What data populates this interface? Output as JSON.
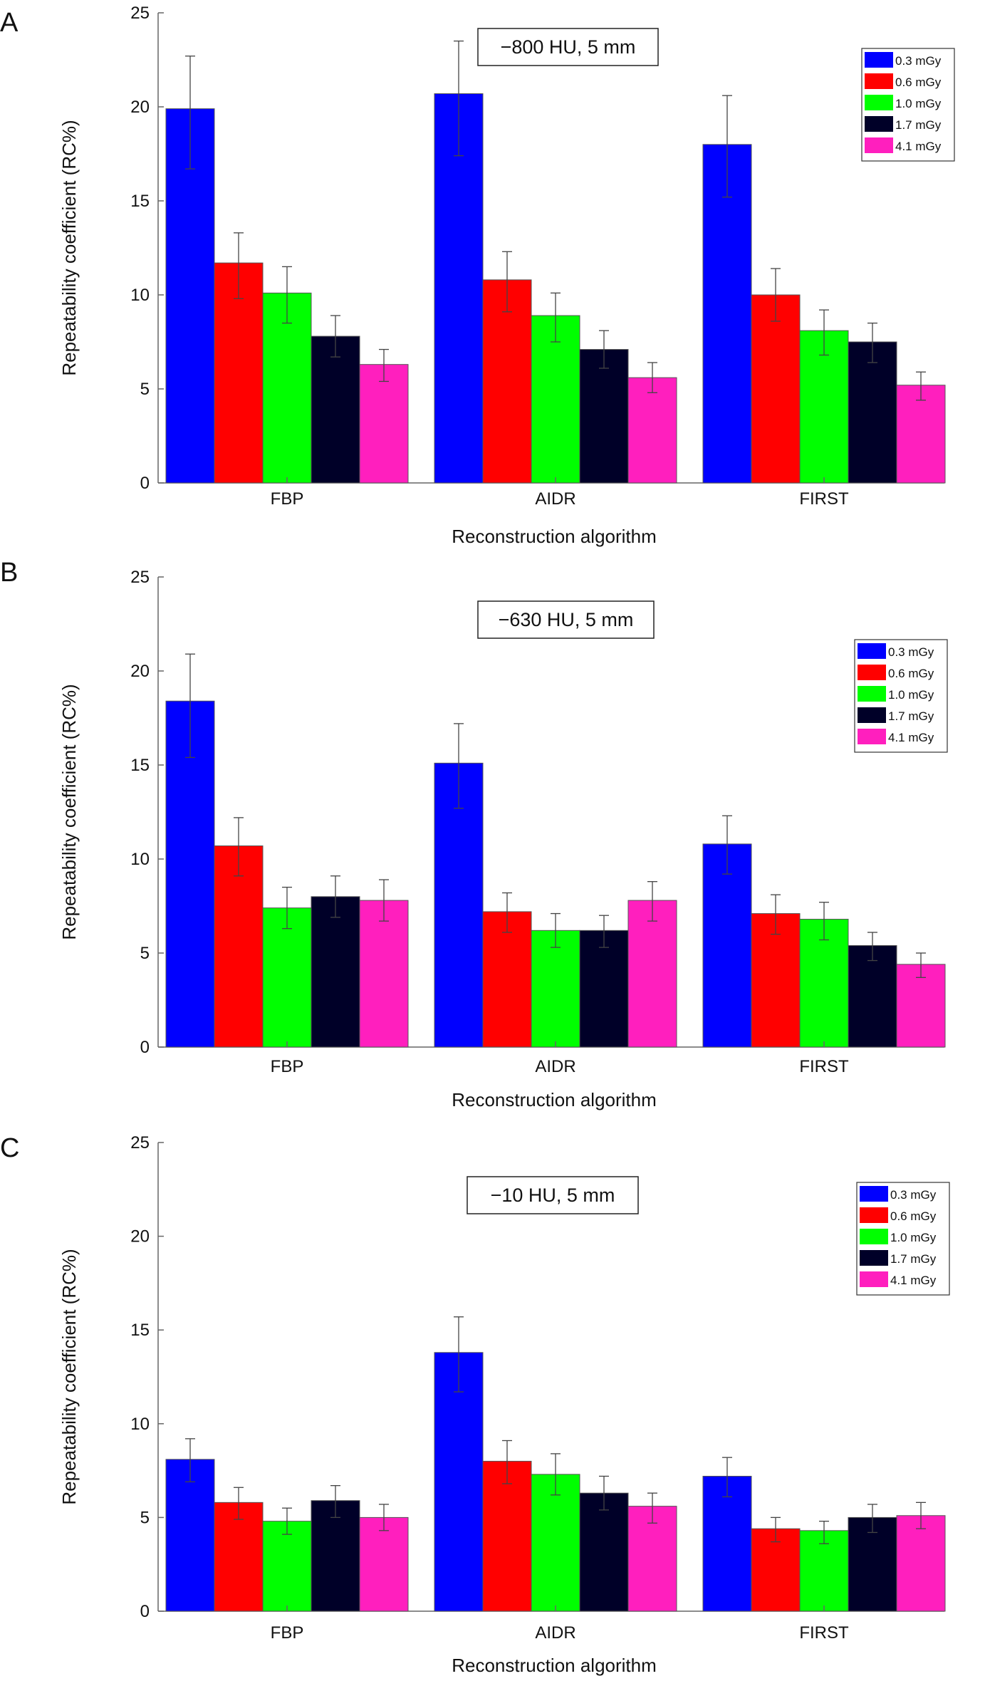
{
  "chart_data": [
    {
      "type": "bar",
      "panel_label": "A",
      "condition_label": "−800 HU, 5 mm",
      "xlabel": "Reconstruction algorithm",
      "ylabel": "Repeatability coefficient (RC%)",
      "ylim": [
        0,
        25
      ],
      "yticks": [
        "0",
        "5",
        "10",
        "15",
        "20",
        "25"
      ],
      "categories": [
        "FBP",
        "AIDR",
        "FIRST"
      ],
      "legend_position": "top-right",
      "grid": false,
      "series": [
        {
          "name": "0.3 mGy",
          "color": "#0000ff",
          "values": [
            19.9,
            20.7,
            18.0
          ],
          "err_low": [
            16.7,
            17.4,
            15.2
          ],
          "err_high": [
            22.7,
            23.5,
            20.6
          ]
        },
        {
          "name": "0.6 mGy",
          "color": "#ff0000",
          "values": [
            11.7,
            10.8,
            10.0
          ],
          "err_low": [
            9.8,
            9.1,
            8.6
          ],
          "err_high": [
            13.3,
            12.3,
            11.4
          ]
        },
        {
          "name": "1.0 mGy",
          "color": "#00ff00",
          "values": [
            10.1,
            8.9,
            8.1
          ],
          "err_low": [
            8.5,
            7.5,
            6.8
          ],
          "err_high": [
            11.5,
            10.1,
            9.2
          ]
        },
        {
          "name": "1.7 mGy",
          "color": "#000028",
          "values": [
            7.8,
            7.1,
            7.5
          ],
          "err_low": [
            6.7,
            6.1,
            6.4
          ],
          "err_high": [
            8.9,
            8.1,
            8.5
          ]
        },
        {
          "name": "4.1 mGy",
          "color": "#ff1fbe",
          "values": [
            6.3,
            5.6,
            5.2
          ],
          "err_low": [
            5.4,
            4.8,
            4.4
          ],
          "err_high": [
            7.1,
            6.4,
            5.9
          ]
        }
      ]
    },
    {
      "type": "bar",
      "panel_label": "B",
      "condition_label": "−630 HU, 5 mm",
      "xlabel": "Reconstruction algorithm",
      "ylabel": "Repeatability coefficient (RC%)",
      "ylim": [
        0,
        25
      ],
      "yticks": [
        "0",
        "5",
        "10",
        "15",
        "20",
        "25"
      ],
      "categories": [
        "FBP",
        "AIDR",
        "FIRST"
      ],
      "legend_position": "top-right",
      "grid": false,
      "series": [
        {
          "name": "0.3 mGy",
          "color": "#0000ff",
          "values": [
            18.4,
            15.1,
            10.8
          ],
          "err_low": [
            15.4,
            12.7,
            9.2
          ],
          "err_high": [
            20.9,
            17.2,
            12.3
          ]
        },
        {
          "name": "0.6 mGy",
          "color": "#ff0000",
          "values": [
            10.7,
            7.2,
            7.1
          ],
          "err_low": [
            9.1,
            6.1,
            6.0
          ],
          "err_high": [
            12.2,
            8.2,
            8.1
          ]
        },
        {
          "name": "1.0 mGy",
          "color": "#00ff00",
          "values": [
            7.4,
            6.2,
            6.8
          ],
          "err_low": [
            6.3,
            5.3,
            5.7
          ],
          "err_high": [
            8.5,
            7.1,
            7.7
          ]
        },
        {
          "name": "1.7 mGy",
          "color": "#000028",
          "values": [
            8.0,
            6.2,
            5.4
          ],
          "err_low": [
            6.9,
            5.3,
            4.6
          ],
          "err_high": [
            9.1,
            7.0,
            6.1
          ]
        },
        {
          "name": "4.1 mGy",
          "color": "#ff1fbe",
          "values": [
            7.8,
            7.8,
            4.4
          ],
          "err_low": [
            6.7,
            6.7,
            3.7
          ],
          "err_high": [
            8.9,
            8.8,
            5.0
          ]
        }
      ]
    },
    {
      "type": "bar",
      "panel_label": "C",
      "condition_label": "−10 HU, 5 mm",
      "xlabel": "Reconstruction algorithm",
      "ylabel": "Repeatability coefficient (RC%)",
      "ylim": [
        0,
        25
      ],
      "yticks": [
        "0",
        "5",
        "10",
        "15",
        "20",
        "25"
      ],
      "categories": [
        "FBP",
        "AIDR",
        "FIRST"
      ],
      "legend_position": "top-right",
      "grid": false,
      "series": [
        {
          "name": "0.3 mGy",
          "color": "#0000ff",
          "values": [
            8.1,
            13.8,
            7.2
          ],
          "err_low": [
            6.9,
            11.7,
            6.1
          ],
          "err_high": [
            9.2,
            15.7,
            8.2
          ]
        },
        {
          "name": "0.6 mGy",
          "color": "#ff0000",
          "values": [
            5.8,
            8.0,
            4.4
          ],
          "err_low": [
            4.9,
            6.8,
            3.7
          ],
          "err_high": [
            6.6,
            9.1,
            5.0
          ]
        },
        {
          "name": "1.0 mGy",
          "color": "#00ff00",
          "values": [
            4.8,
            7.3,
            4.3
          ],
          "err_low": [
            4.1,
            6.2,
            3.6
          ],
          "err_high": [
            5.5,
            8.4,
            4.8
          ]
        },
        {
          "name": "1.7 mGy",
          "color": "#000028",
          "values": [
            5.9,
            6.3,
            5.0
          ],
          "err_low": [
            5.0,
            5.4,
            4.2
          ],
          "err_high": [
            6.7,
            7.2,
            5.7
          ]
        },
        {
          "name": "4.1 mGy",
          "color": "#ff1fbe",
          "values": [
            5.0,
            5.6,
            5.1
          ],
          "err_low": [
            4.3,
            4.7,
            4.4
          ],
          "err_high": [
            5.7,
            6.3,
            5.8
          ]
        }
      ]
    }
  ]
}
